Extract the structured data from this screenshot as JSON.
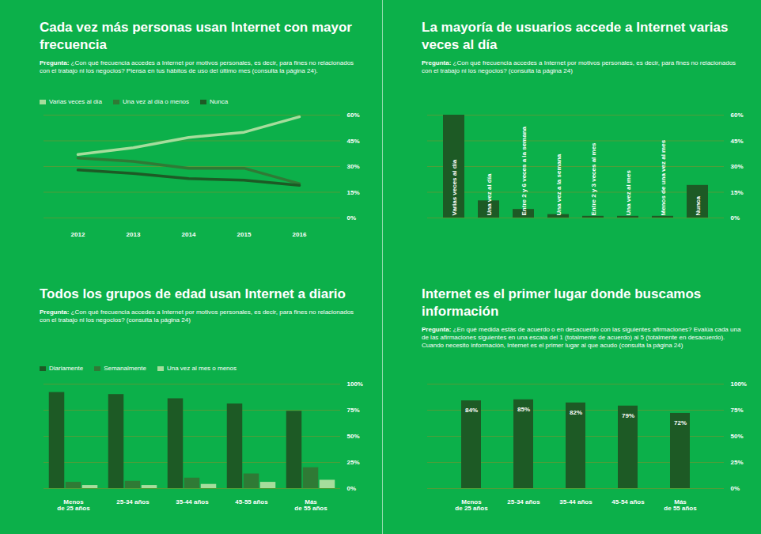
{
  "chart_data": [
    {
      "type": "line",
      "title": "Cada vez más personas usan Internet con mayor frecuencia",
      "subtitle": "Pregunta: ¿Con qué frecuencia accedes a Internet por motivos personales, es decir, para fines no relacionados con el trabajo ni los negocios? Piensa en tus hábitos de uso del último mes (consulta la página 24).",
      "x": [
        2012,
        2013,
        2014,
        2015,
        2016
      ],
      "xlim": [
        2012,
        2016
      ],
      "xticks": [
        2012,
        2013,
        2014,
        2015,
        2016
      ],
      "ylim": [
        0,
        60
      ],
      "yticks": [
        {
          "value": 0,
          "label": "0%"
        },
        {
          "value": 15,
          "label": "15%"
        },
        {
          "value": 30,
          "label": "30%"
        },
        {
          "value": 45,
          "label": "45%"
        },
        {
          "value": 60,
          "label": "60%"
        }
      ],
      "grid": true,
      "legend": "top-left",
      "series": [
        {
          "name": "Varias veces al día",
          "color": "#a6dd9c",
          "values": [
            37,
            41,
            47,
            50,
            59
          ]
        },
        {
          "name": "Una vez al día o menos",
          "color": "#2f7a35",
          "values": [
            35,
            33,
            29,
            29,
            20
          ]
        },
        {
          "name": "Nunca",
          "color": "#1d5a25",
          "values": [
            28,
            26,
            23,
            22,
            19
          ]
        }
      ]
    },
    {
      "type": "bar",
      "title": "La mayoría de usuarios accede a Internet varias veces al día",
      "subtitle": "Pregunta: ¿Con qué frecuencia accedes a Internet por motivos personales, es decir, para fines no relacionados con el trabajo ni los negocios? (consulta la página 24)",
      "categories": [
        "Varias veces al día",
        "Una vez al día",
        "Entre 2 y 6 veces a la semana",
        "Una vez a la semana",
        "Entre 2 y 3 veces al mes",
        "Una vez al mes",
        "Menos de una vez al mes",
        "Nunca"
      ],
      "values": [
        60,
        10,
        5,
        2,
        1,
        1,
        1,
        19
      ],
      "color": "#1d5a25",
      "ylim": [
        0,
        60
      ],
      "yticks": [
        {
          "value": 0,
          "label": "0%"
        },
        {
          "value": 15,
          "label": "15%"
        },
        {
          "value": 30,
          "label": "30%"
        },
        {
          "value": 45,
          "label": "45%"
        },
        {
          "value": 60,
          "label": "60%"
        }
      ],
      "grid": true,
      "tick_labels": "y"
    },
    {
      "type": "bar",
      "title": "Todos los grupos de edad usan Internet a diario",
      "subtitle": "Pregunta: ¿Con qué frecuencia accedes a Internet por motivos personales, es decir, para fines no relacionados con el trabajo ni los negocios? (consulta la página 24)",
      "categories": [
        "Menos de 25 años",
        "25-34 años",
        "35-44 años",
        "45-55 años",
        "Más de 55 años"
      ],
      "ylim": [
        0,
        100
      ],
      "yticks": [
        {
          "value": 0,
          "label": "0%"
        },
        {
          "value": 25,
          "label": "25%"
        },
        {
          "value": 50,
          "label": "50%"
        },
        {
          "value": 75,
          "label": "75%"
        },
        {
          "value": 100,
          "label": "100%"
        }
      ],
      "grid": true,
      "legend": "top-left",
      "series": [
        {
          "name": "Diariamente",
          "color": "#1d5a25",
          "values": [
            92,
            90,
            86,
            81,
            74
          ]
        },
        {
          "name": "Semanalmente",
          "color": "#2f7a35",
          "values": [
            6,
            7,
            10,
            14,
            20
          ]
        },
        {
          "name": "Una vez al mes o menos",
          "color": "#a6dd9c",
          "values": [
            3,
            3,
            4,
            6,
            8
          ]
        }
      ]
    },
    {
      "type": "bar",
      "title": "Internet es el primer lugar donde buscamos información",
      "subtitle": "Pregunta: ¿En qué medida estás de acuerdo o en desacuerdo con las siguientes afirmaciones? Evalúa cada una de las afirmaciones siguientes en una escala del 1 (totalmente de acuerdo) al 5 (totalmente en desacuerdo). Cuando necesito información, Internet es el primer lugar al que acudo (consulta la página 24)",
      "categories": [
        "Menos de 25 años",
        "25-34 años",
        "35-44 años",
        "45-54 años",
        "Más de 55 años"
      ],
      "values": [
        84,
        85,
        82,
        79,
        72
      ],
      "value_labels": [
        "84%",
        "85%",
        "82%",
        "79%",
        "72%"
      ],
      "data_labels": true,
      "color": "#1d5a25",
      "ylim": [
        0,
        100
      ],
      "yticks": [
        {
          "value": 0,
          "label": "0%"
        },
        {
          "value": 25,
          "label": "25%"
        },
        {
          "value": 50,
          "label": "50%"
        },
        {
          "value": 75,
          "label": "75%"
        },
        {
          "value": 100,
          "label": "100%"
        }
      ],
      "grid": true
    }
  ]
}
